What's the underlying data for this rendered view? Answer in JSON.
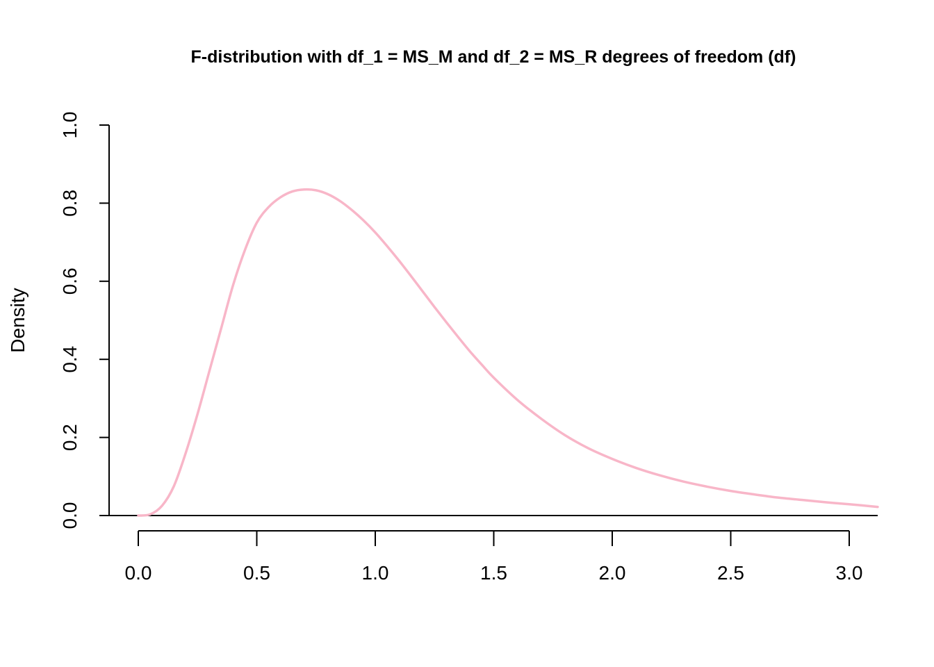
{
  "chart_data": {
    "type": "line",
    "title": "F-distribution with df_1 = MS_M and df_2 = MS_R degrees of freedom (df)",
    "xlabel": "",
    "ylabel": "Density",
    "xlim": [
      0.0,
      3.12
    ],
    "ylim": [
      0.0,
      1.0
    ],
    "x_ticks": [
      "0.0",
      "0.5",
      "1.0",
      "1.5",
      "2.0",
      "2.5",
      "3.0"
    ],
    "y_ticks": [
      "0.0",
      "0.2",
      "0.4",
      "0.6",
      "0.8",
      "1.0"
    ],
    "grid": false,
    "color": "#F8B6C8",
    "series": [
      {
        "x": [
          0.0,
          0.05,
          0.1,
          0.15,
          0.2,
          0.25,
          0.3,
          0.35,
          0.4,
          0.45,
          0.5,
          0.55,
          0.6,
          0.65,
          0.7,
          0.75,
          0.8,
          0.85,
          0.9,
          0.95,
          1.0,
          1.05,
          1.1,
          1.15,
          1.2,
          1.25,
          1.3,
          1.35,
          1.4,
          1.45,
          1.5,
          1.6,
          1.7,
          1.8,
          1.9,
          2.0,
          2.1,
          2.2,
          2.3,
          2.4,
          2.5,
          2.6,
          2.7,
          2.8,
          2.9,
          3.0,
          3.12
        ],
        "values": [
          0.0,
          0.003,
          0.025,
          0.075,
          0.16,
          0.26,
          0.37,
          0.48,
          0.59,
          0.68,
          0.75,
          0.79,
          0.815,
          0.83,
          0.835,
          0.833,
          0.823,
          0.806,
          0.783,
          0.756,
          0.725,
          0.69,
          0.653,
          0.614,
          0.574,
          0.534,
          0.495,
          0.457,
          0.42,
          0.386,
          0.353,
          0.296,
          0.248,
          0.206,
          0.172,
          0.145,
          0.122,
          0.103,
          0.087,
          0.074,
          0.063,
          0.054,
          0.046,
          0.04,
          0.034,
          0.029,
          0.022
        ]
      }
    ]
  }
}
